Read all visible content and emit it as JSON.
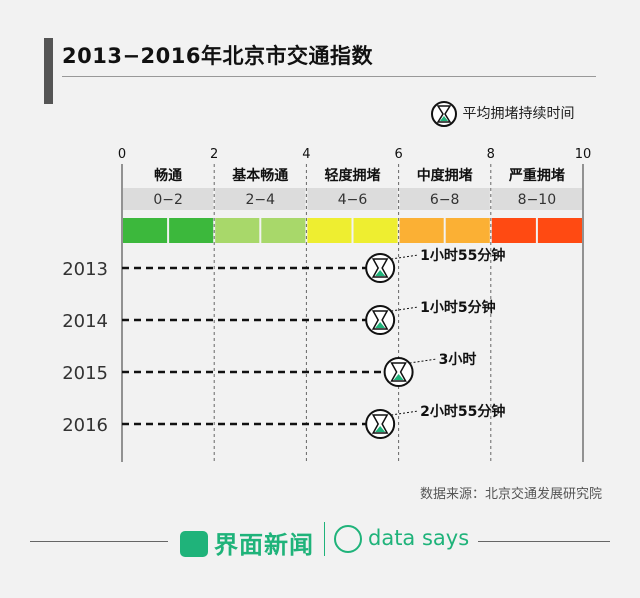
{
  "title": "2013−2016年北京市交通指数",
  "legend_label": "平均拥堵持续时间",
  "source": "数据来源：北京交通发展研究院",
  "brand": {
    "name": "界面新闻",
    "tagline": "data says"
  },
  "colors": {
    "hourglass": "#1fb37a",
    "text": "#111111"
  },
  "chart_data": {
    "type": "bar",
    "title": "2013−2016年北京市交通指数",
    "xlim": [
      0,
      10
    ],
    "x_ticks": [
      "0",
      "2",
      "4",
      "6",
      "8",
      "10"
    ],
    "bands": [
      {
        "label": "畅通",
        "range": "0−2",
        "from": 0,
        "to": 2,
        "color": "#3cb83c"
      },
      {
        "label": "基本畅通",
        "range": "2−4",
        "from": 2,
        "to": 4,
        "color": "#a8d86a"
      },
      {
        "label": "轻度拥堵",
        "range": "4−6",
        "from": 4,
        "to": 6,
        "color": "#eeee30"
      },
      {
        "label": "中度拥堵",
        "range": "6−8",
        "from": 6,
        "to": 8,
        "color": "#fbb034"
      },
      {
        "label": "严重拥堵",
        "range": "8−10",
        "from": 8,
        "to": 10,
        "color": "#ff4a12"
      }
    ],
    "categories": [
      "2013",
      "2014",
      "2015",
      "2016"
    ],
    "values": [
      5.6,
      5.6,
      6.0,
      5.6
    ],
    "annotations": [
      "1小时55分钟",
      "1小时5分钟",
      "3小时",
      "2小时55分钟"
    ]
  }
}
